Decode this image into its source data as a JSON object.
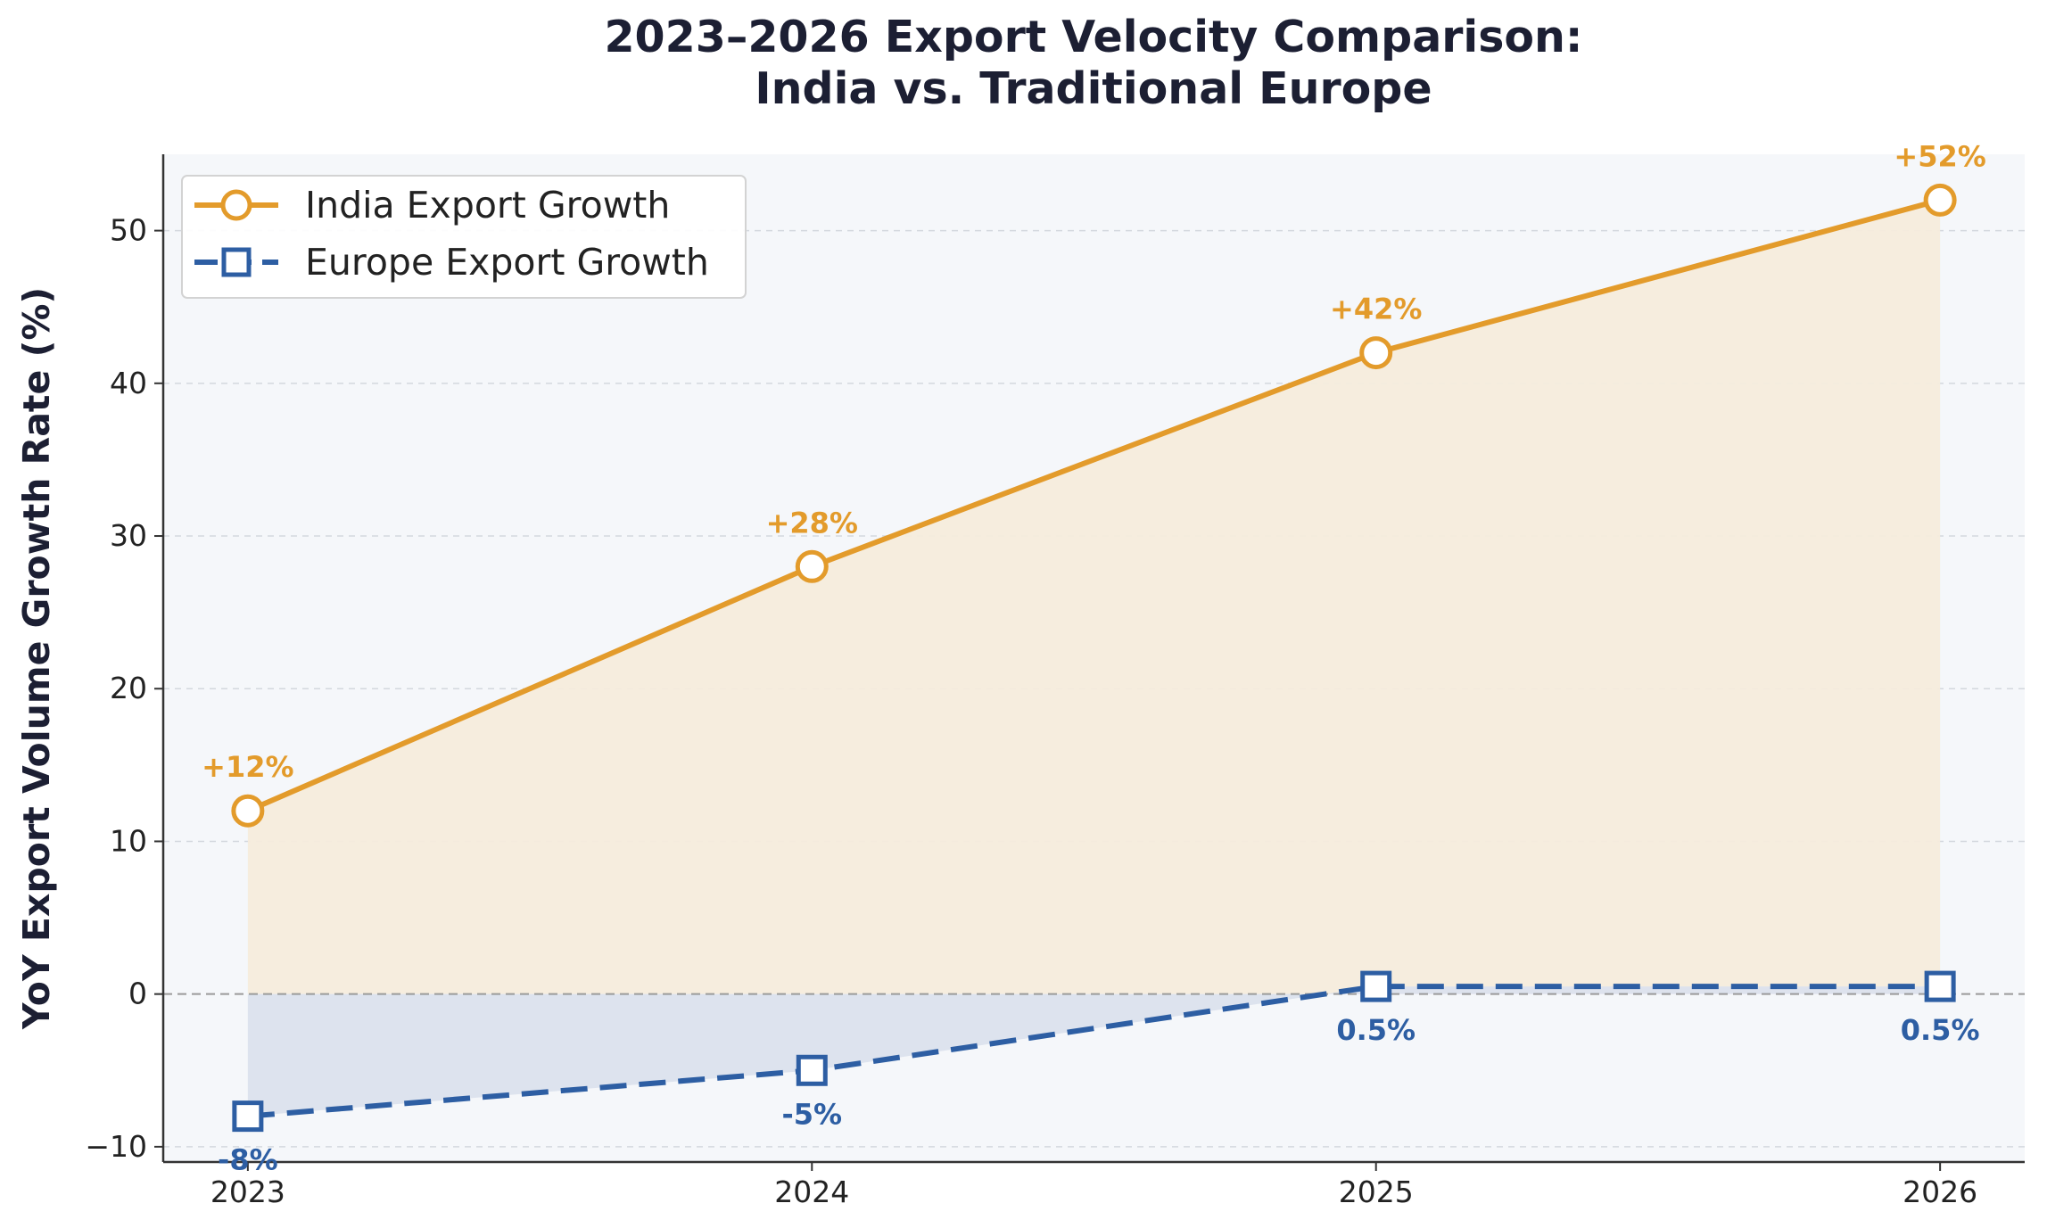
{
  "chart_data": {
    "type": "line",
    "title": [
      "2023–2026 Export Velocity Comparison:",
      "India vs. Traditional Europe"
    ],
    "xlabel": "",
    "ylabel": "YoY Export Volume Growth Rate (%)",
    "x": [
      "2023",
      "2024",
      "2025",
      "2026"
    ],
    "xlim": [
      2022.85,
      2026.15
    ],
    "ylim": [
      -11,
      55
    ],
    "yticks": [
      -10,
      0,
      10,
      20,
      30,
      40,
      50
    ],
    "ytick_labels": [
      "−10",
      "0",
      "10",
      "20",
      "30",
      "40",
      "50"
    ],
    "grid": "horizontal-dashed",
    "zero_line": true,
    "legend": "top-left",
    "series": [
      {
        "name": "India Export Growth",
        "x": [
          2023,
          2024,
          2025,
          2026
        ],
        "values": [
          12,
          28,
          42,
          52
        ],
        "labels": [
          "+12%",
          "+28%",
          "+42%",
          "+52%"
        ],
        "color": "#e39b2b",
        "fill": "#f5ecdc",
        "marker": "circle",
        "line": "solid"
      },
      {
        "name": "Europe Export Growth",
        "x": [
          2023,
          2024,
          2025,
          2026
        ],
        "values": [
          -8,
          -5,
          0.5,
          0.5
        ],
        "labels": [
          "-8%",
          "-5%",
          "0.5%",
          "0.5%"
        ],
        "color": "#2d5ea3",
        "fill": "#dbe2ed",
        "marker": "square",
        "line": "dashed"
      }
    ]
  }
}
